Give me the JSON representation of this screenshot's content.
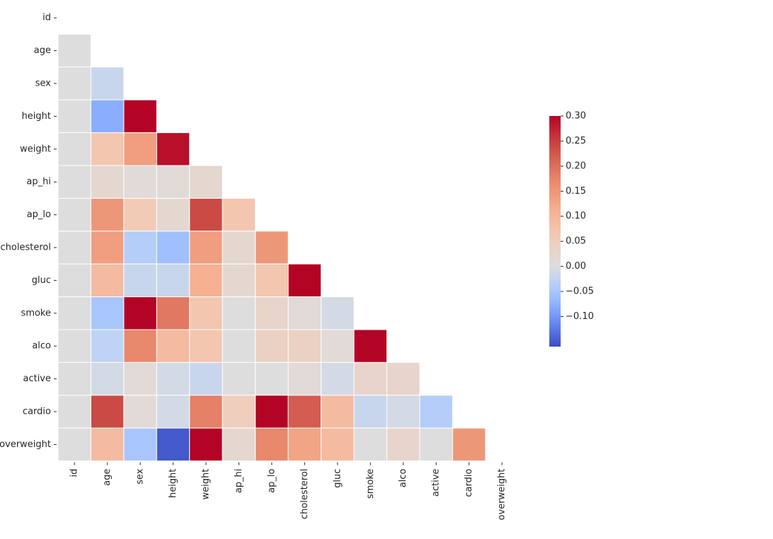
{
  "chart_data": {
    "type": "heatmap",
    "title": "",
    "xlabel": "",
    "ylabel": "",
    "variables": [
      "id",
      "age",
      "sex",
      "height",
      "weight",
      "ap_hi",
      "ap_lo",
      "cholesterol",
      "gluc",
      "smoke",
      "alco",
      "active",
      "cardio",
      "overweight"
    ],
    "mask": "upper-triangle-including-diagonal",
    "colormap": "coolwarm",
    "center": 0,
    "vmin": -0.16,
    "vmax": 0.3,
    "colorbar_ticks": [
      "0.30",
      "0.25",
      "0.20",
      "0.15",
      "0.10",
      "0.05",
      "0.00",
      "−0.05",
      "−0.10"
    ],
    "colorbar_tick_values": [
      0.3,
      0.25,
      0.2,
      0.15,
      0.1,
      0.05,
      0.0,
      -0.05,
      -0.1
    ],
    "rows": [
      {
        "name": "age",
        "values": [
          0.0
        ]
      },
      {
        "name": "sex",
        "values": [
          0.0,
          -0.02
        ]
      },
      {
        "name": "height",
        "values": [
          0.0,
          -0.08,
          0.5
        ]
      },
      {
        "name": "weight",
        "values": [
          0.0,
          0.07,
          0.14,
          0.29
        ]
      },
      {
        "name": "ap_hi",
        "values": [
          0.0,
          0.02,
          0.01,
          0.01,
          0.02
        ]
      },
      {
        "name": "ap_lo",
        "values": [
          0.0,
          0.15,
          0.06,
          0.02,
          0.24,
          0.07
        ]
      },
      {
        "name": "cholesterol",
        "values": [
          0.0,
          0.14,
          -0.04,
          -0.06,
          0.14,
          0.02,
          0.15
        ]
      },
      {
        "name": "gluc",
        "values": [
          0.0,
          0.09,
          -0.02,
          -0.02,
          0.11,
          0.02,
          0.07,
          0.45
        ]
      },
      {
        "name": "smoke",
        "values": [
          0.0,
          -0.05,
          0.34,
          0.19,
          0.07,
          0.0,
          0.03,
          0.01,
          -0.01
        ]
      },
      {
        "name": "alco",
        "values": [
          0.0,
          -0.03,
          0.17,
          0.09,
          0.07,
          0.0,
          0.04,
          0.04,
          0.01,
          0.34
        ]
      },
      {
        "name": "active",
        "values": [
          0.0,
          -0.01,
          0.01,
          -0.01,
          -0.02,
          0.0,
          0.0,
          0.01,
          -0.01,
          0.03,
          0.03
        ]
      },
      {
        "name": "cardio",
        "values": [
          0.0,
          0.24,
          0.01,
          -0.01,
          0.18,
          0.05,
          0.33,
          0.22,
          0.09,
          -0.02,
          -0.01,
          -0.04
        ]
      },
      {
        "name": "overweight",
        "values": [
          0.0,
          0.09,
          -0.05,
          -0.15,
          0.66,
          0.02,
          0.17,
          0.13,
          0.09,
          0.0,
          0.03,
          0.0,
          0.15
        ]
      }
    ]
  }
}
